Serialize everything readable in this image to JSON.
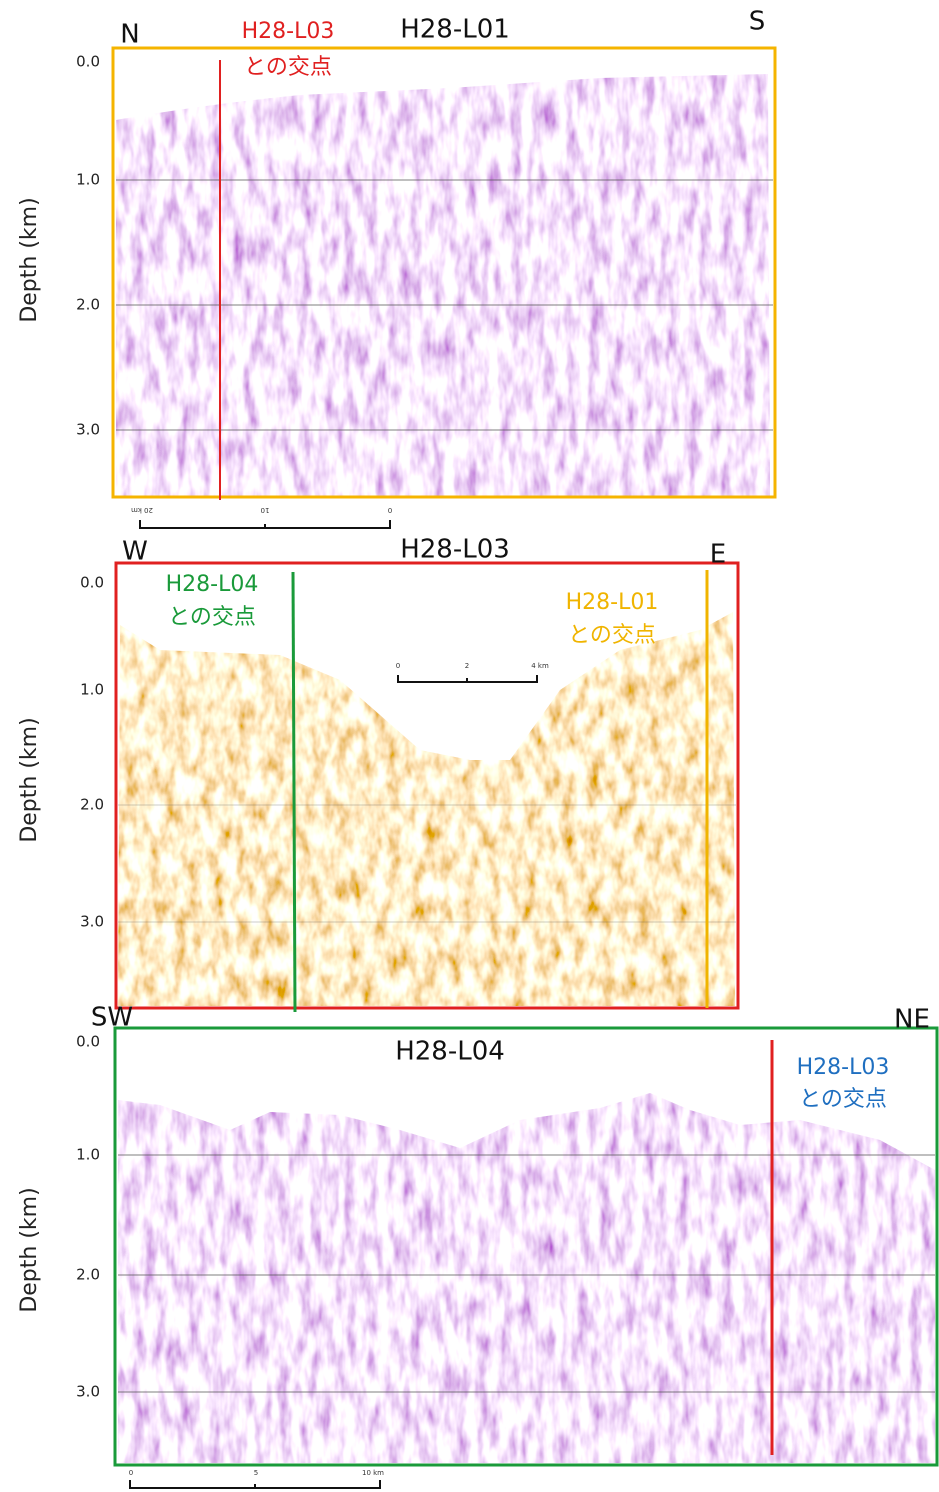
{
  "panels": [
    {
      "title": "H28-L01",
      "left_direction": "N",
      "right_direction": "S",
      "y_label": "Depth (km)",
      "yticks": [
        "0.0",
        "1.0",
        "2.0",
        "3.0"
      ],
      "intersection": {
        "line": "H28-L03",
        "text": "との交点"
      },
      "scale_labels": [
        "20 km",
        "10",
        "0"
      ]
    },
    {
      "title": "H28-L03",
      "left_direction": "W",
      "right_direction": "E",
      "y_label": "Depth (km)",
      "yticks": [
        "0.0",
        "1.0",
        "2.0",
        "3.0"
      ],
      "intersections": [
        {
          "line": "H28-L04",
          "text": "との交点"
        },
        {
          "line": "H28-L01",
          "text": "との交点"
        }
      ],
      "scale_labels": [
        "0",
        "2",
        "4 km"
      ]
    },
    {
      "title": "H28-L04",
      "left_direction": "SW",
      "right_direction": "NE",
      "y_label": "Depth (km)",
      "yticks": [
        "0.0",
        "1.0",
        "2.0",
        "3.0"
      ],
      "intersection": {
        "line": "H28-L03",
        "text": "との交点"
      },
      "scale_labels": [
        "0",
        "5",
        "10 km"
      ]
    }
  ]
}
